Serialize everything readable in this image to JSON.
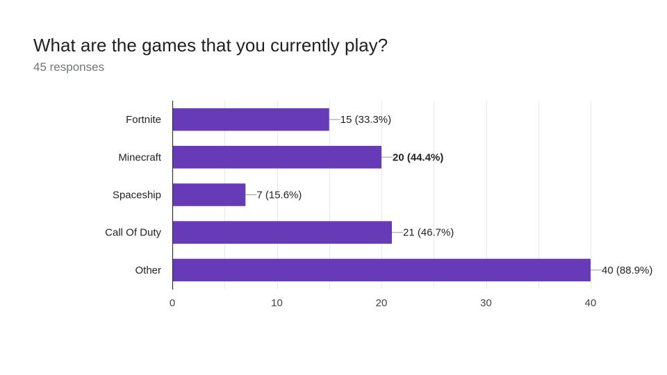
{
  "header": {
    "question": "What are the games that you currently play?",
    "responses": "45 responses"
  },
  "colors": {
    "bar": "#673ab7",
    "grid": "#e8e8e8",
    "axis": "#333333",
    "leader": "#999999"
  },
  "chart_data": {
    "type": "bar",
    "orientation": "horizontal",
    "categories": [
      "Fortnite",
      "Minecraft",
      "Spaceship",
      "Call Of Duty",
      "Other"
    ],
    "values": [
      15,
      20,
      7,
      21,
      40
    ],
    "data_labels": [
      "15 (33.3%)",
      "20 (44.4%)",
      "7 (15.6%)",
      "21 (46.7%)",
      "40 (88.9%)"
    ],
    "bold_label": "Minecraft",
    "xlim": [
      0,
      40
    ],
    "xticks": [
      0,
      10,
      20,
      30,
      40
    ],
    "grid": true,
    "legend": "none"
  }
}
